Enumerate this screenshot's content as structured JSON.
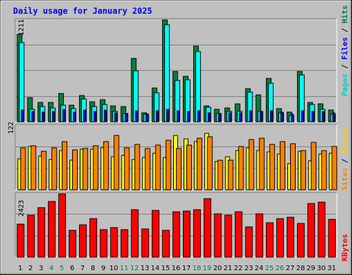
{
  "title": "Daily usage for January 2025",
  "colors": {
    "title": "#0000ff",
    "pages": "#00ffff",
    "files": "#0000ff",
    "hits": "#008040",
    "sites": "#ff8000",
    "visits": "#ffff00",
    "kbytes": "#ff0000",
    "weekend_day": "#008040",
    "weekday_day": "#000000",
    "panel_bg": "#c0c0c0",
    "bar_dark_hits": "#008040"
  },
  "chart_data": [
    {
      "type": "bar",
      "name": "hits-files-pages",
      "categories": [
        "1",
        "2",
        "3",
        "4",
        "5",
        "6",
        "7",
        "8",
        "9",
        "10",
        "11",
        "12",
        "13",
        "14",
        "15",
        "16",
        "17",
        "18",
        "19",
        "20",
        "21",
        "22",
        "23",
        "24",
        "25",
        "26",
        "27",
        "28",
        "29",
        "30",
        "31"
      ],
      "ymax_label": "1211",
      "ylim": [
        0,
        1211
      ],
      "series": [
        {
          "name": "Hits",
          "values": [
            1041,
            287,
            227,
            227,
            335,
            200,
            313,
            241,
            263,
            187,
            177,
            752,
            108,
            398,
            1211,
            594,
            538,
            896,
            186,
            147,
            164,
            214,
            396,
            317,
            515,
            157,
            111,
            594,
            227,
            214,
            141
          ]
        },
        {
          "name": "Files",
          "values": [
            140,
            125,
            115,
            120,
            145,
            115,
            140,
            120,
            140,
            110,
            100,
            130,
            85,
            130,
            145,
            130,
            120,
            135,
            110,
            100,
            110,
            110,
            130,
            120,
            135,
            115,
            90,
            135,
            120,
            120,
            110
          ]
        },
        {
          "name": "Pages",
          "values": [
            937,
            146,
            184,
            160,
            200,
            155,
            272,
            176,
            202,
            125,
            100,
            602,
            90,
            341,
            1150,
            491,
            497,
            838,
            170,
            100,
            120,
            120,
            350,
            125,
            457,
            110,
            75,
            553,
            202,
            150,
            90
          ]
        }
      ],
      "legend": [
        "Hits",
        "Files",
        "Pages"
      ]
    },
    {
      "type": "bar",
      "name": "visits-sites",
      "categories": [
        "1",
        "2",
        "3",
        "4",
        "5",
        "6",
        "7",
        "8",
        "9",
        "10",
        "11",
        "12",
        "13",
        "14",
        "15",
        "16",
        "17",
        "18",
        "19",
        "20",
        "21",
        "22",
        "23",
        "24",
        "25",
        "26",
        "27",
        "28",
        "29",
        "30",
        "31"
      ],
      "ymax_label": "122",
      "ylim": [
        0,
        122
      ],
      "series": [
        {
          "name": "Visits",
          "values": [
            59,
            83,
            64,
            58,
            75,
            57,
            77,
            77,
            80,
            63,
            66,
            58,
            61,
            69,
            62,
            103,
            97,
            92,
            107,
            54,
            63,
            75,
            80,
            75,
            72,
            68,
            50,
            74,
            55,
            68,
            69
          ]
        },
        {
          "name": "Sites",
          "values": [
            80,
            84,
            73,
            80,
            92,
            76,
            79,
            84,
            92,
            103,
            80,
            87,
            79,
            85,
            95,
            79,
            85,
            98,
            101,
            56,
            57,
            82,
            96,
            99,
            86,
            92,
            88,
            75,
            91,
            75,
            83
          ]
        }
      ],
      "legend": [
        "Sites",
        "Visits"
      ]
    },
    {
      "type": "bar",
      "name": "kbytes",
      "categories": [
        "1",
        "2",
        "3",
        "4",
        "5",
        "6",
        "7",
        "8",
        "9",
        "10",
        "11",
        "12",
        "13",
        "14",
        "15",
        "16",
        "17",
        "18",
        "19",
        "20",
        "21",
        "22",
        "23",
        "24",
        "25",
        "26",
        "27",
        "28",
        "29",
        "30",
        "31"
      ],
      "ymax_label": "2423",
      "ylim": [
        0,
        2423
      ],
      "series": [
        {
          "name": "KBytes",
          "values": [
            1270,
            1598,
            1890,
            2124,
            2423,
            1023,
            1249,
            1481,
            1061,
            1138,
            1061,
            1818,
            1085,
            1787,
            1023,
            1726,
            1768,
            1818,
            2241,
            1654,
            1595,
            1746,
            1149,
            1654,
            1307,
            1487,
            1540,
            1290,
            2052,
            2120,
            1449
          ]
        }
      ],
      "legend": [
        "KBytes"
      ]
    }
  ],
  "days": [
    {
      "label": "1",
      "weekend": false
    },
    {
      "label": "2",
      "weekend": false
    },
    {
      "label": "3",
      "weekend": false
    },
    {
      "label": "4",
      "weekend": true
    },
    {
      "label": "5",
      "weekend": true
    },
    {
      "label": "6",
      "weekend": false
    },
    {
      "label": "7",
      "weekend": false
    },
    {
      "label": "8",
      "weekend": false
    },
    {
      "label": "9",
      "weekend": false
    },
    {
      "label": "10",
      "weekend": false
    },
    {
      "label": "11",
      "weekend": true
    },
    {
      "label": "12",
      "weekend": true
    },
    {
      "label": "13",
      "weekend": false
    },
    {
      "label": "14",
      "weekend": false
    },
    {
      "label": "15",
      "weekend": false
    },
    {
      "label": "16",
      "weekend": false
    },
    {
      "label": "17",
      "weekend": false
    },
    {
      "label": "18",
      "weekend": true
    },
    {
      "label": "19",
      "weekend": true
    },
    {
      "label": "20",
      "weekend": false
    },
    {
      "label": "21",
      "weekend": false
    },
    {
      "label": "22",
      "weekend": false
    },
    {
      "label": "23",
      "weekend": false
    },
    {
      "label": "24",
      "weekend": false
    },
    {
      "label": "25",
      "weekend": true
    },
    {
      "label": "26",
      "weekend": true
    },
    {
      "label": "27",
      "weekend": false
    },
    {
      "label": "28",
      "weekend": false
    },
    {
      "label": "29",
      "weekend": false
    },
    {
      "label": "30",
      "weekend": false
    },
    {
      "label": "31",
      "weekend": false
    }
  ],
  "legends": {
    "top": {
      "hits": "Hits",
      "files": "Files",
      "pages": "Pages",
      "sep": "/"
    },
    "middle": {
      "visits": "Visits",
      "sites": "Sites",
      "sep": "/"
    },
    "bottom": {
      "kbytes": "KBytes"
    }
  }
}
